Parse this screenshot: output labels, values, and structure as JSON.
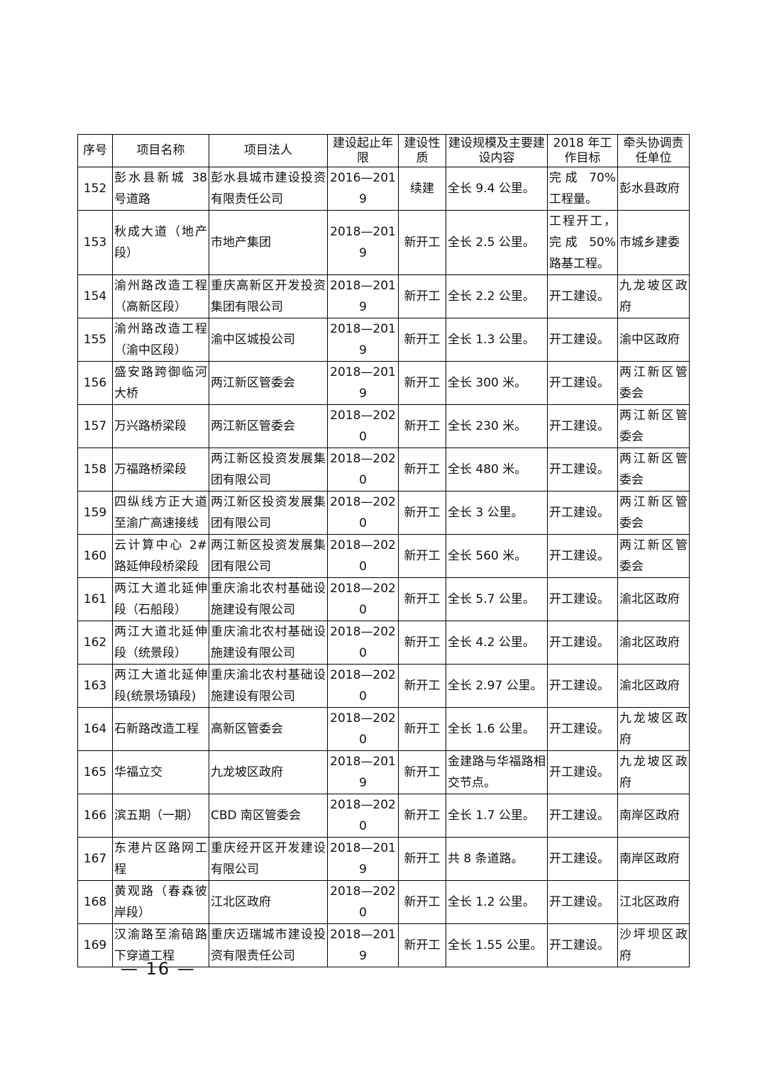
{
  "table": {
    "header": [
      "序号",
      "项目名称",
      "项目法人",
      "建设起止年限",
      "建设性质",
      "建设规模及主要建设内容",
      "2018 年工作目标",
      "牵头协调责任单位"
    ],
    "rows": [
      [
        "152",
        "彭水县新城 38 号道路",
        "彭水县城市建设投资有限责任公司",
        "2016—2019",
        "续建",
        "全长 9.4 公里。",
        "完成 70%工程量。",
        "彭水县政府"
      ],
      [
        "153",
        "秋成大道（地产段）",
        "市地产集团",
        "2018—2019",
        "新开工",
        "全长 2.5 公里。",
        "工程开工，完成 50%路基工程。",
        "市城乡建委"
      ],
      [
        "154",
        "渝州路改造工程（高新区段）",
        "重庆高新区开发投资集团有限公司",
        "2018—2019",
        "新开工",
        "全长 2.2 公里。",
        "开工建设。",
        "九龙坡区政府"
      ],
      [
        "155",
        "渝州路改造工程（渝中区段）",
        "渝中区城投公司",
        "2018—2019",
        "新开工",
        "全长 1.3 公里。",
        "开工建设。",
        "渝中区政府"
      ],
      [
        "156",
        "盛安路跨御临河大桥",
        "两江新区管委会",
        "2018—2019",
        "新开工",
        "全长 300 米。",
        "开工建设。",
        "两江新区管委会"
      ],
      [
        "157",
        "万兴路桥梁段",
        "两江新区管委会",
        "2018—2020",
        "新开工",
        "全长 230 米。",
        "开工建设。",
        "两江新区管委会"
      ],
      [
        "158",
        "万福路桥梁段",
        "两江新区投资发展集团有限公司",
        "2018—2020",
        "新开工",
        "全长 480 米。",
        "开工建设。",
        "两江新区管委会"
      ],
      [
        "159",
        "四纵线方正大道至渝广高速接线",
        "两江新区投资发展集团有限公司",
        "2018—2020",
        "新开工",
        "全长 3 公里。",
        "开工建设。",
        "两江新区管委会"
      ],
      [
        "160",
        "云计算中心 2#路延伸段桥梁段",
        "两江新区投资发展集团有限公司",
        "2018—2020",
        "新开工",
        "全长 560 米。",
        "开工建设。",
        "两江新区管委会"
      ],
      [
        "161",
        "两江大道北延伸段（石船段）",
        "重庆渝北农村基础设施建设有限公司",
        "2018—2020",
        "新开工",
        "全长 5.7 公里。",
        "开工建设。",
        "渝北区政府"
      ],
      [
        "162",
        "两江大道北延伸段（统景段）",
        "重庆渝北农村基础设施建设有限公司",
        "2018—2020",
        "新开工",
        "全长 4.2 公里。",
        "开工建设。",
        "渝北区政府"
      ],
      [
        "163",
        "两江大道北延伸段(统景场镇段)",
        "重庆渝北农村基础设施建设有限公司",
        "2018—2020",
        "新开工",
        "全长 2.97 公里。",
        "开工建设。",
        "渝北区政府"
      ],
      [
        "164",
        "石新路改造工程",
        "高新区管委会",
        "2018—2020",
        "新开工",
        "全长 1.6 公里。",
        "开工建设。",
        "九龙坡区政府"
      ],
      [
        "165",
        "华福立交",
        "九龙坡区政府",
        "2018—2019",
        "新开工",
        "金建路与华福路相交节点。",
        "开工建设。",
        "九龙坡区政府"
      ],
      [
        "166",
        "滨五期（一期）",
        "CBD 南区管委会",
        "2018—2020",
        "新开工",
        "全长 1.7 公里。",
        "开工建设。",
        "南岸区政府"
      ],
      [
        "167",
        "东港片区路网工程",
        "重庆经开区开发建设有限公司",
        "2018—2019",
        "新开工",
        "共 8 条道路。",
        "开工建设。",
        "南岸区政府"
      ],
      [
        "168",
        "黄观路（春森彼岸段）",
        "江北区政府",
        "2018—2020",
        "新开工",
        "全长 1.2 公里。",
        "开工建设。",
        "江北区政府"
      ],
      [
        "169",
        "汉渝路至渝碚路下穿道工程",
        "重庆迈瑞城市建设投资有限责任公司",
        "2018—2019",
        "新开工",
        "全长 1.55 公里。",
        "开工建设。",
        "沙坪坝区政府"
      ]
    ]
  },
  "footer": {
    "page_number": "— 16 —"
  }
}
